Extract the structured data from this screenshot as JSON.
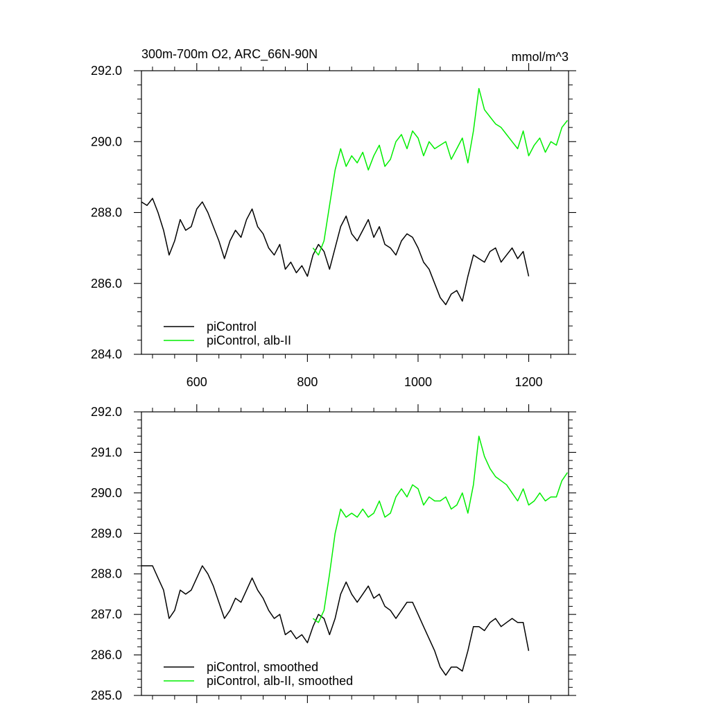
{
  "chart_data": [
    {
      "type": "line",
      "title": "300m-700m O2, ARC_66N-90N",
      "units": "mmol/m^3",
      "xlim": [
        500,
        1272
      ],
      "ylim": [
        284.0,
        292.0
      ],
      "xticks": [
        600,
        800,
        1000,
        1200
      ],
      "xtick_labels": [
        "600",
        "800",
        "1000",
        "1200"
      ],
      "yticks": [
        284,
        286,
        288,
        290,
        292
      ],
      "ytick_labels": [
        "284.0",
        "286.0",
        "288.0",
        "290.0",
        "292.0"
      ],
      "grid": false,
      "legend_position": "bottom-left",
      "series": [
        {
          "name": "piControl",
          "color": "#000000",
          "x": [
            500,
            510,
            520,
            530,
            540,
            550,
            560,
            570,
            580,
            590,
            600,
            610,
            620,
            630,
            640,
            650,
            660,
            670,
            680,
            690,
            700,
            710,
            720,
            730,
            740,
            750,
            760,
            770,
            780,
            790,
            800,
            810,
            820,
            830,
            840,
            850,
            860,
            870,
            880,
            890,
            900,
            910,
            920,
            930,
            940,
            950,
            960,
            970,
            980,
            990,
            1000,
            1010,
            1020,
            1030,
            1040,
            1050,
            1060,
            1070,
            1080,
            1090,
            1100,
            1110,
            1120,
            1130,
            1140,
            1150,
            1160,
            1170,
            1180,
            1190,
            1200
          ],
          "y": [
            288.3,
            288.2,
            288.4,
            288.0,
            287.5,
            286.8,
            287.2,
            287.8,
            287.5,
            287.6,
            288.1,
            288.3,
            288.0,
            287.6,
            287.2,
            286.7,
            287.2,
            287.5,
            287.3,
            287.8,
            288.1,
            287.6,
            287.4,
            287.0,
            286.8,
            287.1,
            286.4,
            286.6,
            286.3,
            286.5,
            286.2,
            286.8,
            287.1,
            286.9,
            286.4,
            287.0,
            287.6,
            287.9,
            287.4,
            287.2,
            287.5,
            287.8,
            287.3,
            287.6,
            287.1,
            287.0,
            286.8,
            287.2,
            287.4,
            287.3,
            287.0,
            286.6,
            286.4,
            286.0,
            285.6,
            285.4,
            285.7,
            285.8,
            285.5,
            286.2,
            286.8,
            286.7,
            286.6,
            286.9,
            287.0,
            286.6,
            286.8,
            287.0,
            286.7,
            286.9,
            286.2
          ],
          "smoothed_y": [
            288.2,
            288.2,
            288.2,
            287.9,
            287.6,
            286.9,
            287.1,
            287.6,
            287.5,
            287.6,
            287.9,
            288.2,
            288.0,
            287.7,
            287.3,
            286.9,
            287.1,
            287.4,
            287.3,
            287.6,
            287.9,
            287.6,
            287.4,
            287.1,
            286.9,
            287.0,
            286.5,
            286.6,
            286.4,
            286.5,
            286.3,
            286.7,
            287.0,
            286.9,
            286.5,
            286.9,
            287.5,
            287.8,
            287.5,
            287.3,
            287.5,
            287.7,
            287.4,
            287.5,
            287.2,
            287.1,
            286.9,
            287.1,
            287.3,
            287.3,
            287.0,
            286.7,
            286.4,
            286.1,
            285.7,
            285.5,
            285.7,
            285.7,
            285.6,
            286.1,
            286.7,
            286.7,
            286.6,
            286.8,
            286.9,
            286.7,
            286.8,
            286.9,
            286.8,
            286.8,
            286.1
          ]
        },
        {
          "name": "piControl, alb-II",
          "color": "#00ee00",
          "x": [
            810,
            820,
            830,
            840,
            850,
            860,
            870,
            880,
            890,
            900,
            910,
            920,
            930,
            940,
            950,
            960,
            970,
            980,
            990,
            1000,
            1010,
            1020,
            1030,
            1040,
            1050,
            1060,
            1070,
            1080,
            1090,
            1100,
            1110,
            1120,
            1130,
            1140,
            1150,
            1160,
            1170,
            1180,
            1190,
            1200,
            1210,
            1220,
            1230,
            1240,
            1250,
            1260,
            1270
          ],
          "y": [
            287.0,
            286.8,
            287.2,
            288.2,
            289.2,
            289.8,
            289.3,
            289.6,
            289.4,
            289.7,
            289.2,
            289.6,
            289.9,
            289.3,
            289.5,
            290.0,
            290.2,
            289.8,
            290.3,
            290.1,
            289.6,
            290.0,
            289.8,
            289.9,
            290.0,
            289.5,
            289.8,
            290.1,
            289.4,
            290.3,
            291.5,
            290.9,
            290.7,
            290.5,
            290.4,
            290.2,
            290.0,
            289.8,
            290.3,
            289.6,
            289.9,
            290.1,
            289.7,
            290.0,
            289.9,
            290.4,
            290.6
          ],
          "smoothed_y": [
            286.9,
            286.8,
            287.1,
            288.0,
            289.0,
            289.6,
            289.4,
            289.5,
            289.4,
            289.6,
            289.4,
            289.5,
            289.8,
            289.4,
            289.5,
            289.9,
            290.1,
            289.9,
            290.2,
            290.1,
            289.7,
            289.9,
            289.8,
            289.8,
            289.9,
            289.6,
            289.7,
            290.0,
            289.5,
            290.2,
            291.4,
            290.9,
            290.6,
            290.4,
            290.3,
            290.2,
            290.0,
            289.8,
            290.1,
            289.7,
            289.8,
            290.0,
            289.8,
            289.9,
            289.9,
            290.3,
            290.5
          ]
        }
      ]
    },
    {
      "type": "line",
      "title": "",
      "xlim": [
        500,
        1272
      ],
      "ylim": [
        285.0,
        292.0
      ],
      "xticks": [
        600,
        800,
        1000,
        1200
      ],
      "xtick_labels": [],
      "yticks": [
        285,
        286,
        287,
        288,
        289,
        290,
        291,
        292
      ],
      "ytick_labels": [
        "285.0",
        "286.0",
        "287.0",
        "288.0",
        "289.0",
        "290.0",
        "291.0",
        "292.0"
      ],
      "grid": false,
      "legend_position": "bottom-left",
      "series": [
        {
          "name": "piControl, smoothed",
          "color": "#000000",
          "source": 0,
          "field": "smoothed_y"
        },
        {
          "name": "piControl, alb-II, smoothed",
          "color": "#00ee00",
          "source": 1,
          "field": "smoothed_y"
        }
      ]
    }
  ]
}
